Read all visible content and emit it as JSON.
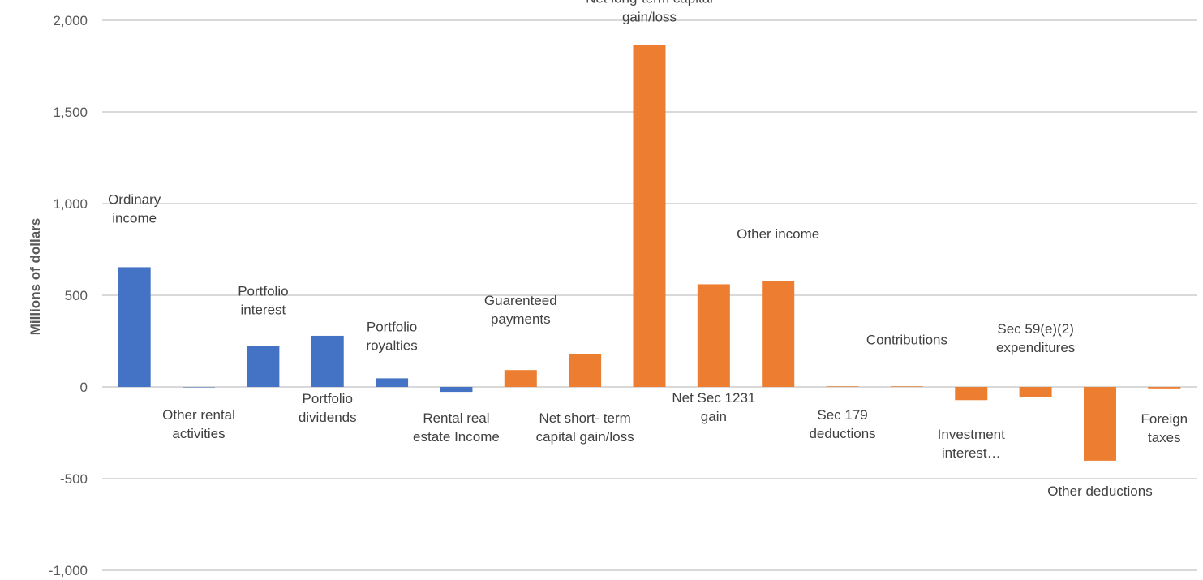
{
  "chart_data": {
    "type": "bar",
    "title": "",
    "xlabel": "",
    "ylabel": "Millions of dollars",
    "ylim": [
      -1000,
      2000
    ],
    "yticks": [
      2000,
      1500,
      1000,
      500,
      0,
      -500,
      -1000
    ],
    "ytick_labels": [
      "2,000",
      "1,500",
      "1,000",
      "500",
      "0",
      "-500",
      "-1,000"
    ],
    "grid": true,
    "legend": "none",
    "colors": {
      "group_1": "#4472C4",
      "group_2": "#ED7D31",
      "grid": "#D9D9D9",
      "text": "#404040"
    },
    "categories": [
      "Ordinary income",
      "Other rental activities",
      "Portfolio interest",
      "Portfolio dividends",
      "Portfolio royalties",
      "Rental real estate Income",
      "Guarenteed payments",
      "Net short- term capital gain/loss",
      "Net long-term capital gain/loss",
      "Net Sec 1231 gain",
      "Other income",
      "Sec 179 deductions",
      "Contributions",
      "Investment interest…",
      "Sec 59(e)(2) expenditures",
      "Other deductions",
      "Foreign taxes"
    ],
    "values": [
      653,
      0,
      224,
      279,
      47,
      -27,
      92,
      181,
      1866,
      560,
      576,
      3,
      3,
      -72,
      -54,
      -402,
      -8
    ],
    "bar_colors": [
      "#4472C4",
      "#4472C4",
      "#4472C4",
      "#4472C4",
      "#4472C4",
      "#4472C4",
      "#ED7D31",
      "#ED7D31",
      "#ED7D31",
      "#ED7D31",
      "#ED7D31",
      "#ED7D31",
      "#ED7D31",
      "#ED7D31",
      "#ED7D31",
      "#ED7D31",
      "#ED7D31"
    ],
    "label_lines": [
      [
        "Ordinary",
        "income"
      ],
      [
        "Other rental",
        "activities"
      ],
      [
        "Portfolio",
        "interest"
      ],
      [
        "Portfolio",
        "dividends"
      ],
      [
        "Portfolio",
        "royalties"
      ],
      [
        "Rental real",
        "estate Income"
      ],
      [
        "Guarenteed",
        "payments"
      ],
      [
        "Net short- term",
        "capital gain/loss"
      ],
      [
        "Net long-term capital",
        "gain/loss"
      ],
      [
        "Net Sec 1231",
        "gain"
      ],
      [
        "Other income"
      ],
      [
        "Sec 179",
        "deductions"
      ],
      [
        "Contributions"
      ],
      [
        "Investment",
        "interest…"
      ],
      [
        "Sec 59(e)(2)",
        "expenditures"
      ],
      [
        "Other deductions"
      ],
      [
        "Foreign",
        "taxes"
      ]
    ]
  }
}
